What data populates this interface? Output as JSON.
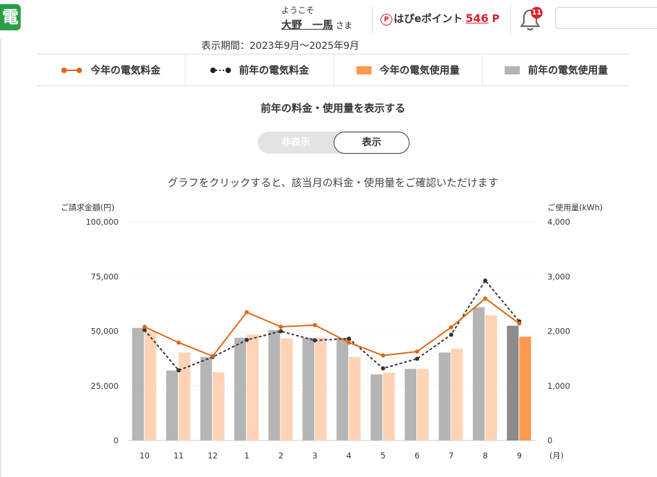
{
  "header": {
    "logo_glyph": "電",
    "welcome": "ようこそ",
    "user_name": "大野　一馬",
    "honorific": "さま",
    "points_badge": "P",
    "points_label": "はぴeポイント",
    "points_value": "546",
    "points_unit": "P",
    "notification_count": "11",
    "search_placeholder": ""
  },
  "period": "表示期間：2023年9月～2025年9月",
  "legend": [
    {
      "label": "今年の電気料金",
      "icon": "orange-line-marker"
    },
    {
      "label": "前年の電気料金",
      "icon": "black-dotted-line-marker"
    },
    {
      "label": "今年の電気使用量",
      "icon": "orange-bar"
    },
    {
      "label": "前年の電気使用量",
      "icon": "gray-bar"
    }
  ],
  "prev_year_section": {
    "title": "前年の料金・使用量を表示する",
    "toggle_hide": "非表示",
    "toggle_show": "表示",
    "selected": "表示"
  },
  "chart_notice": "グラフをクリックすると、該当月の料金・使用量をご確認いただけます",
  "colors": {
    "this_year_line": "#e0650f",
    "last_year_line": "#333333",
    "this_year_bar": "#ffd3b6",
    "this_year_bar_selected": "#ff9a4f",
    "last_year_bar": "#b5b5b5",
    "last_year_bar_selected": "#8c8c8c"
  },
  "chart_data": {
    "type": "bar",
    "left_axis_label": "ご請求金額(円)",
    "right_axis_label": "ご使用量(kWh)",
    "x_unit": "(月)",
    "categories": [
      "10",
      "11",
      "12",
      "1",
      "2",
      "3",
      "4",
      "5",
      "6",
      "7",
      "8",
      "9"
    ],
    "left_ticks": [
      "0",
      "25,000",
      "50,000",
      "75,000",
      "100,000"
    ],
    "right_ticks": [
      "0",
      "1,000",
      "2,000",
      "3,000",
      "4,000"
    ],
    "ylim_left": [
      0,
      100000
    ],
    "ylim_right": [
      0,
      4000
    ],
    "grid": true,
    "selected_index": 11,
    "series": [
      {
        "name": "前年の電気使用量",
        "kind": "bar",
        "axis": "right",
        "values": [
          2060,
          1280,
          1530,
          1880,
          2020,
          1880,
          1880,
          1210,
          1310,
          1610,
          2440,
          2100
        ]
      },
      {
        "name": "今年の電気使用量",
        "kind": "bar",
        "axis": "right",
        "values": [
          1990,
          1610,
          1250,
          1940,
          1870,
          1880,
          1530,
          1240,
          1310,
          1680,
          2290,
          1900
        ]
      },
      {
        "name": "今年の電気料金",
        "kind": "line",
        "axis": "left",
        "values": [
          52000,
          44800,
          38600,
          58700,
          52000,
          52800,
          44800,
          38900,
          40700,
          51800,
          65000,
          53500
        ]
      },
      {
        "name": "前年の電気料金",
        "kind": "line",
        "axis": "left",
        "values": [
          50600,
          32100,
          38200,
          46000,
          50000,
          45800,
          46600,
          33000,
          37400,
          48400,
          73200,
          54500
        ]
      }
    ]
  }
}
